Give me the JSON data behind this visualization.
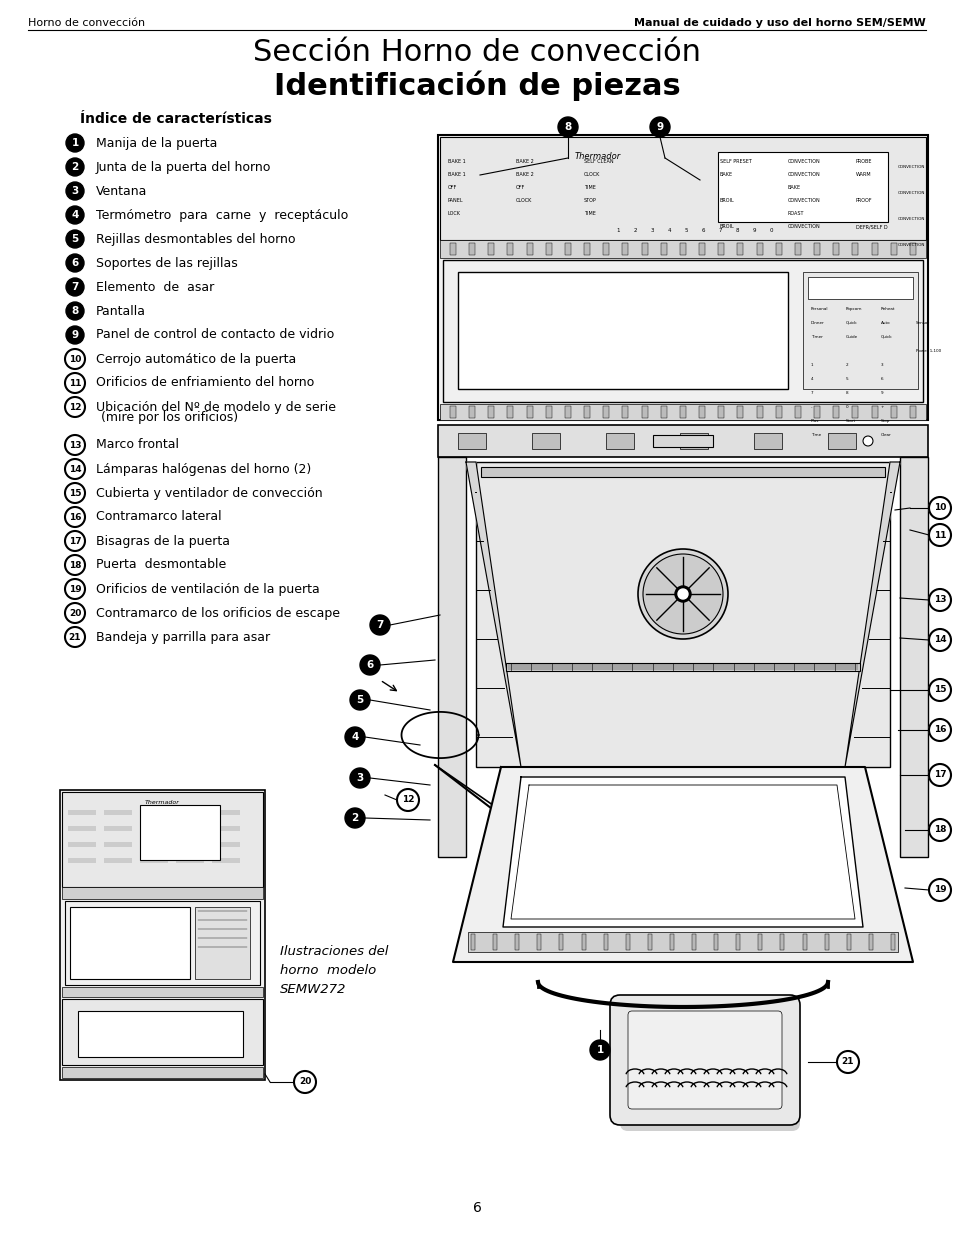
{
  "header_left": "Horno de convección",
  "header_right": "Manual de cuidado y uso del horno SEM/SEMW",
  "title_line1": "Sección Horno de convección",
  "title_line2": "Identificación de piezas",
  "index_title": "Índice de características",
  "items": [
    {
      "num": "1",
      "text": "Manija de la puerta",
      "filled": true
    },
    {
      "num": "2",
      "text": "Junta de la puerta del horno",
      "filled": true
    },
    {
      "num": "3",
      "text": "Ventana",
      "filled": true
    },
    {
      "num": "4",
      "text": "Termómetro  para  carne  y  receptáculo",
      "filled": true
    },
    {
      "num": "5",
      "text": "Rejillas desmontables del horno",
      "filled": true
    },
    {
      "num": "6",
      "text": "Soportes de las rejillas",
      "filled": true
    },
    {
      "num": "7",
      "text": "Elemento  de  asar",
      "filled": true
    },
    {
      "num": "8",
      "text": "Pantalla",
      "filled": true
    },
    {
      "num": "9",
      "text": "Panel de control de contacto de vidrio",
      "filled": true
    },
    {
      "num": "10",
      "text": "Cerrojo automático de la puerta",
      "filled": false
    },
    {
      "num": "11",
      "text": "Orificios de enfriamiento del horno",
      "filled": false
    },
    {
      "num": "12",
      "text": "Ubicación del Nº de modelo y de serie",
      "text2": "(mire por los orificios)",
      "filled": false
    },
    {
      "num": "13",
      "text": "Marco frontal",
      "filled": false
    },
    {
      "num": "14",
      "text": "Lámparas halógenas del horno (2)",
      "filled": false
    },
    {
      "num": "15",
      "text": "Cubierta y ventilador de convección",
      "filled": false
    },
    {
      "num": "16",
      "text": "Contramarco lateral",
      "filled": false
    },
    {
      "num": "17",
      "text": "Bisagras de la puerta",
      "filled": false
    },
    {
      "num": "18",
      "text": "Puerta  desmontable",
      "filled": false
    },
    {
      "num": "19",
      "text": "Orificios de ventilación de la puerta",
      "filled": false
    },
    {
      "num": "20",
      "text": "Contramarco de los orificios de escape",
      "filled": false
    },
    {
      "num": "21",
      "text": "Bandeja y parrilla para asar",
      "filled": false
    }
  ],
  "caption": "Ilustraciones del\nhorno  modelo\nSEMW272",
  "page_num": "6",
  "bg_color": "#ffffff"
}
